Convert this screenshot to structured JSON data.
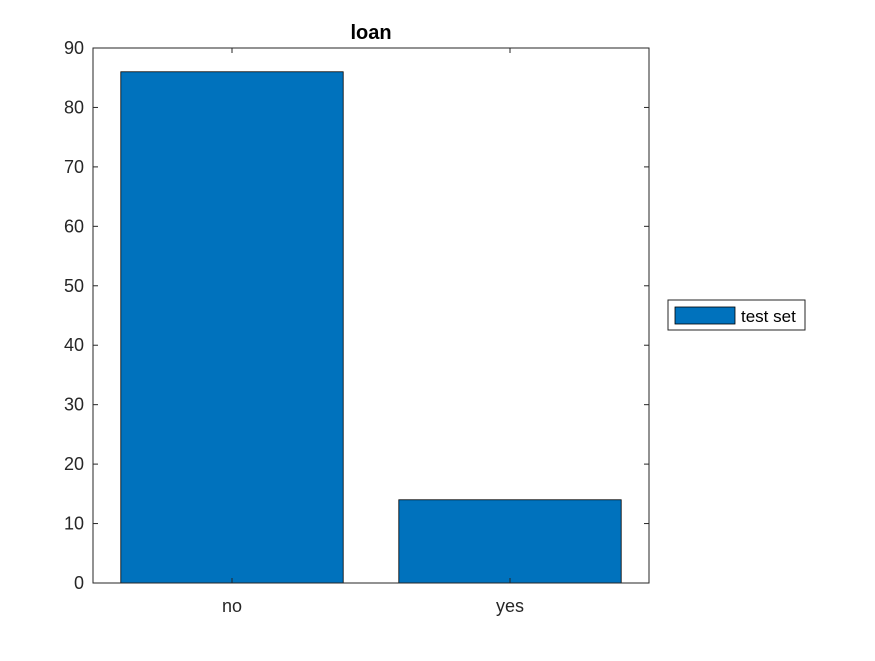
{
  "chart_data": {
    "type": "bar",
    "title": "loan",
    "xlabel": "",
    "ylabel": "",
    "categories": [
      "no",
      "yes"
    ],
    "series": [
      {
        "name": "test set",
        "values": [
          86,
          14
        ],
        "color": "#0072BD"
      }
    ],
    "ylim": [
      0,
      90
    ],
    "yticks": [
      0,
      10,
      20,
      30,
      40,
      50,
      60,
      70,
      80,
      90
    ],
    "grid": false,
    "legend_position": "right"
  }
}
